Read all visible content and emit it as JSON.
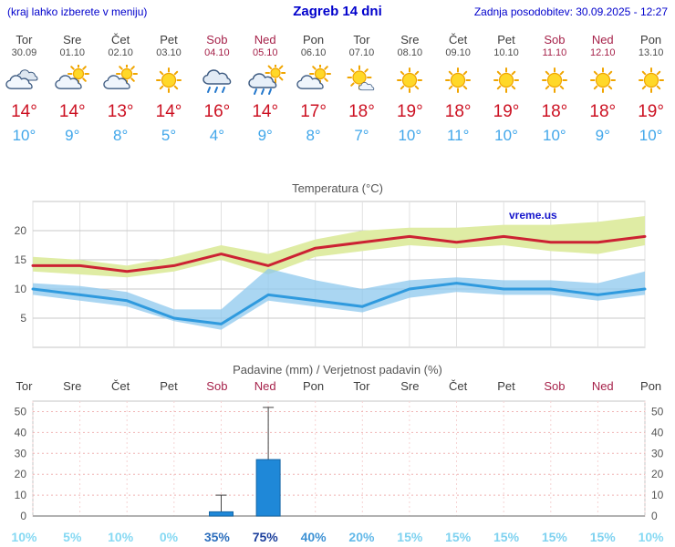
{
  "header": {
    "location_note": "(kraj lahko izberete v meniju)",
    "title": "Zagreb 14 dni",
    "last_update": "Zadnja posodobitev: 30.09.2025 - 12:27"
  },
  "days": [
    {
      "name": "Tor",
      "date": "30.09",
      "weekend": false,
      "icon": "cloudy",
      "tmax": "14°",
      "tmin": "10°"
    },
    {
      "name": "Sre",
      "date": "01.10",
      "weekend": false,
      "icon": "partly",
      "tmax": "14°",
      "tmin": "9°"
    },
    {
      "name": "Čet",
      "date": "02.10",
      "weekend": false,
      "icon": "partly",
      "tmax": "13°",
      "tmin": "8°"
    },
    {
      "name": "Pet",
      "date": "03.10",
      "weekend": false,
      "icon": "sunny",
      "tmax": "14°",
      "tmin": "5°"
    },
    {
      "name": "Sob",
      "date": "04.10",
      "weekend": true,
      "icon": "rain",
      "tmax": "16°",
      "tmin": "4°"
    },
    {
      "name": "Ned",
      "date": "05.10",
      "weekend": true,
      "icon": "rain-sun",
      "tmax": "14°",
      "tmin": "9°"
    },
    {
      "name": "Pon",
      "date": "06.10",
      "weekend": false,
      "icon": "partly",
      "tmax": "17°",
      "tmin": "8°"
    },
    {
      "name": "Tor",
      "date": "07.10",
      "weekend": false,
      "icon": "mostly-sunny",
      "tmax": "18°",
      "tmin": "7°"
    },
    {
      "name": "Sre",
      "date": "08.10",
      "weekend": false,
      "icon": "sunny",
      "tmax": "19°",
      "tmin": "10°"
    },
    {
      "name": "Čet",
      "date": "09.10",
      "weekend": false,
      "icon": "sunny",
      "tmax": "18°",
      "tmin": "11°"
    },
    {
      "name": "Pet",
      "date": "10.10",
      "weekend": false,
      "icon": "sunny",
      "tmax": "19°",
      "tmin": "10°"
    },
    {
      "name": "Sob",
      "date": "11.10",
      "weekend": true,
      "icon": "sunny",
      "tmax": "18°",
      "tmin": "10°"
    },
    {
      "name": "Ned",
      "date": "12.10",
      "weekend": true,
      "icon": "sunny",
      "tmax": "18°",
      "tmin": "9°"
    },
    {
      "name": "Pon",
      "date": "13.10",
      "weekend": false,
      "icon": "sunny",
      "tmax": "19°",
      "tmin": "10°"
    }
  ],
  "chart_data": [
    {
      "type": "line",
      "title": "Temperatura (°C)",
      "watermark": "vreme.us",
      "x": [
        "30.09",
        "01.10",
        "02.10",
        "03.10",
        "04.10",
        "05.10",
        "06.10",
        "07.10",
        "08.10",
        "09.10",
        "10.10",
        "11.10",
        "12.10",
        "13.10"
      ],
      "ylim": [
        0,
        25
      ],
      "yticks": [
        5,
        10,
        15,
        20
      ],
      "grid": true,
      "band_colors": {
        "max": "#dfeca4",
        "min": "#8ec8ee"
      },
      "series": [
        {
          "name": "max_temp",
          "color": "#cc2233",
          "values": [
            14,
            14,
            13,
            14,
            16,
            14,
            17,
            18,
            19,
            18,
            19,
            18,
            18,
            19
          ]
        },
        {
          "name": "max_temp_range_high",
          "values": [
            15.5,
            15,
            14,
            15.5,
            17.5,
            16,
            18.5,
            20,
            20.5,
            20.5,
            21,
            21,
            21.5,
            22.5
          ]
        },
        {
          "name": "max_temp_range_low",
          "values": [
            13,
            12.5,
            12,
            13,
            15,
            12.5,
            15.5,
            16.5,
            17.5,
            17,
            17.5,
            16.5,
            16,
            17.5
          ]
        },
        {
          "name": "min_temp",
          "color": "#2f9ade",
          "values": [
            10,
            9,
            8,
            5,
            4,
            9,
            8,
            7,
            10,
            11,
            10,
            10,
            9,
            10
          ]
        },
        {
          "name": "min_temp_range_high",
          "values": [
            11,
            10.5,
            9.5,
            6.5,
            6.5,
            13.5,
            11.5,
            10,
            11.5,
            12,
            11.5,
            11.5,
            11,
            13
          ]
        },
        {
          "name": "min_temp_range_low",
          "values": [
            9,
            8,
            7,
            4.5,
            3,
            8,
            7,
            6,
            8.5,
            9.5,
            9,
            9,
            8,
            9
          ]
        }
      ]
    },
    {
      "type": "bar",
      "title": "Padavine (mm) / Verjetnost padavin (%)",
      "categories": [
        "Tor",
        "Sre",
        "Čet",
        "Pet",
        "Sob",
        "Ned",
        "Pon",
        "Tor",
        "Sre",
        "Čet",
        "Pet",
        "Sob",
        "Ned",
        "Pon"
      ],
      "weekend": [
        false,
        false,
        false,
        false,
        true,
        true,
        false,
        false,
        false,
        false,
        false,
        true,
        true,
        false
      ],
      "values": [
        0,
        0,
        0,
        0,
        2,
        27,
        0,
        0,
        0,
        0,
        0,
        0,
        0,
        0
      ],
      "range_high": [
        0,
        0,
        0,
        0,
        10,
        52,
        0,
        0,
        0,
        0,
        0,
        0,
        0,
        0
      ],
      "ylim": [
        0,
        55
      ],
      "yticks": [
        0,
        10,
        20,
        30,
        40,
        50
      ],
      "bar_color": "#1f88d8",
      "probabilities": [
        "10%",
        "5%",
        "10%",
        "0%",
        "35%",
        "75%",
        "40%",
        "20%",
        "15%",
        "15%",
        "15%",
        "15%",
        "15%",
        "10%"
      ],
      "probability_colors": [
        "#86d9f3",
        "#86d9f3",
        "#86d9f3",
        "#86d9f3",
        "#2d6fbd",
        "#1c3f9c",
        "#3e92d4",
        "#63b9e9",
        "#7fd2f0",
        "#7fd2f0",
        "#7fd2f0",
        "#7fd2f0",
        "#7fd2f0",
        "#86d9f3"
      ]
    }
  ]
}
